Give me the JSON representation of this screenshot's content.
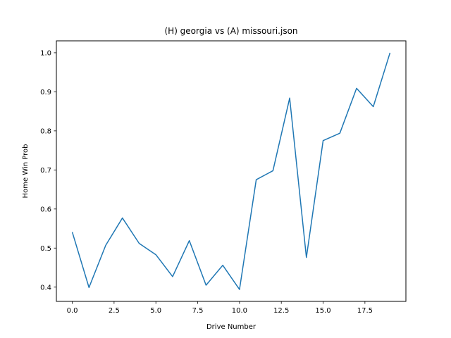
{
  "chart_data": {
    "type": "line",
    "title": "(H) georgia vs (A) missouri.json",
    "xlabel": "Drive Number",
    "ylabel": "Home Win Prob",
    "xlim": [
      -0.95,
      19.95
    ],
    "ylim": [
      0.3635,
      1.0305
    ],
    "xticks": [
      0.0,
      2.5,
      5.0,
      7.5,
      10.0,
      12.5,
      15.0,
      17.5
    ],
    "xtick_labels": [
      "0.0",
      "2.5",
      "5.0",
      "7.5",
      "10.0",
      "12.5",
      "15.0",
      "17.5"
    ],
    "yticks": [
      0.4,
      0.5,
      0.6,
      0.7,
      0.8,
      0.9,
      1.0
    ],
    "ytick_labels": [
      "0.4",
      "0.5",
      "0.6",
      "0.7",
      "0.8",
      "0.9",
      "1.0"
    ],
    "grid": false,
    "series": [
      {
        "color": "#1f77b4",
        "x": [
          0,
          1,
          2,
          3,
          4,
          5,
          6,
          7,
          8,
          9,
          10,
          11,
          12,
          13,
          14,
          15,
          16,
          17,
          18,
          19
        ],
        "values": [
          0.541,
          0.399,
          0.507,
          0.577,
          0.512,
          0.483,
          0.427,
          0.519,
          0.405,
          0.456,
          0.394,
          0.675,
          0.698,
          0.884,
          0.476,
          0.775,
          0.794,
          0.909,
          0.862,
          1.0
        ]
      }
    ]
  }
}
